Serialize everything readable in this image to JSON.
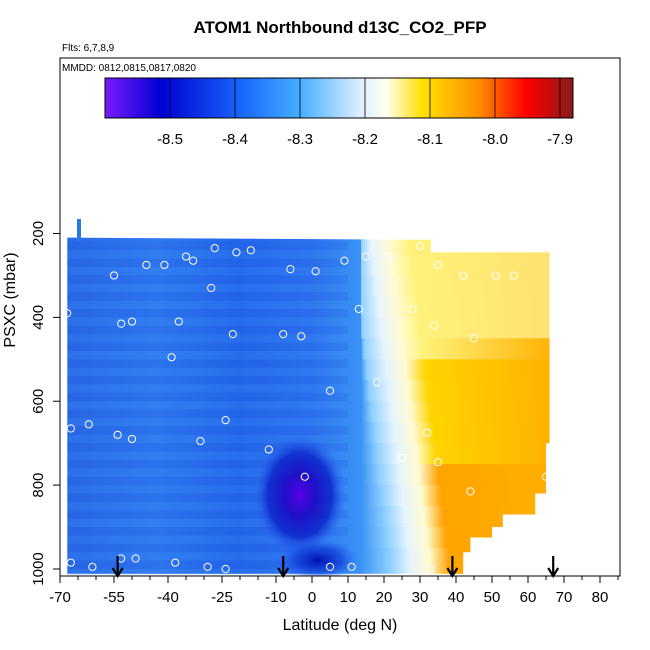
{
  "chart_data": {
    "type": "heatmap",
    "title": "ATOM1 Northbound d13C_CO2_PFP",
    "flights_note": "Flts: 6,7,8,9",
    "dates_note": "MMDD: 0812,0815,0817,0820",
    "xlabel": "Latitude (deg N)",
    "ylabel": "PSXC (mbar)",
    "xlim": [
      -70,
      85
    ],
    "ylim": [
      1000,
      0
    ],
    "x_tick_labels": [
      "-70",
      "-55",
      "-40",
      "-25",
      "-10",
      "0",
      "10",
      "20",
      "30",
      "40",
      "50",
      "60",
      "70",
      "80"
    ],
    "x_tick_values": [
      -70,
      -55,
      -40,
      -25,
      -10,
      0,
      10,
      20,
      30,
      40,
      50,
      60,
      70,
      80
    ],
    "y_tick_labels": [
      "200",
      "400",
      "600",
      "800",
      "1000"
    ],
    "y_tick_values": [
      200,
      400,
      600,
      800,
      1000
    ],
    "colorbar": {
      "min": -8.6,
      "max": -7.88,
      "tick_labels": [
        "-8.5",
        "-8.4",
        "-8.3",
        "-8.2",
        "-8.1",
        "-8.0",
        "-7.9"
      ],
      "tick_values": [
        -8.5,
        -8.4,
        -8.3,
        -8.2,
        -8.1,
        -8.0,
        -7.9
      ],
      "colors": [
        "#6a00ff",
        "#0000c8",
        "#1e64ff",
        "#46b4ff",
        "#c8e6ff",
        "#fffff0",
        "#ffd200",
        "#ff8c00",
        "#ff0000",
        "#8b1a1a"
      ]
    },
    "sample_points": [
      {
        "lat": -68,
        "p": 390
      },
      {
        "lat": -67,
        "p": 665
      },
      {
        "lat": -67,
        "p": 985
      },
      {
        "lat": -62,
        "p": 655
      },
      {
        "lat": -61,
        "p": 995
      },
      {
        "lat": -55,
        "p": 300
      },
      {
        "lat": -54,
        "p": 680
      },
      {
        "lat": -53,
        "p": 415
      },
      {
        "lat": -53,
        "p": 975
      },
      {
        "lat": -50,
        "p": 410
      },
      {
        "lat": -50,
        "p": 690
      },
      {
        "lat": -49,
        "p": 975
      },
      {
        "lat": -46,
        "p": 275
      },
      {
        "lat": -41,
        "p": 275
      },
      {
        "lat": -39,
        "p": 495
      },
      {
        "lat": -38,
        "p": 985
      },
      {
        "lat": -37,
        "p": 410
      },
      {
        "lat": -35,
        "p": 255
      },
      {
        "lat": -33,
        "p": 265
      },
      {
        "lat": -31,
        "p": 695
      },
      {
        "lat": -29,
        "p": 995
      },
      {
        "lat": -28,
        "p": 330
      },
      {
        "lat": -27,
        "p": 235
      },
      {
        "lat": -24,
        "p": 645
      },
      {
        "lat": -24,
        "p": 1000
      },
      {
        "lat": -22,
        "p": 440
      },
      {
        "lat": -21,
        "p": 245
      },
      {
        "lat": -17,
        "p": 240
      },
      {
        "lat": -12,
        "p": 715
      },
      {
        "lat": -8,
        "p": 440
      },
      {
        "lat": -6,
        "p": 285
      },
      {
        "lat": -3,
        "p": 445
      },
      {
        "lat": -2,
        "p": 780
      },
      {
        "lat": 1,
        "p": 290
      },
      {
        "lat": 5,
        "p": 575
      },
      {
        "lat": 5,
        "p": 995
      },
      {
        "lat": 9,
        "p": 265
      },
      {
        "lat": 11,
        "p": 995
      },
      {
        "lat": 13,
        "p": 380
      },
      {
        "lat": 15,
        "p": 255
      },
      {
        "lat": 18,
        "p": 555
      },
      {
        "lat": 21,
        "p": 255
      },
      {
        "lat": 25,
        "p": 735
      },
      {
        "lat": 28,
        "p": 380
      },
      {
        "lat": 30,
        "p": 230
      },
      {
        "lat": 32,
        "p": 675
      },
      {
        "lat": 33,
        "p": 1000
      },
      {
        "lat": 34,
        "p": 420
      },
      {
        "lat": 35,
        "p": 275
      },
      {
        "lat": 35,
        "p": 745
      },
      {
        "lat": 42,
        "p": 300
      },
      {
        "lat": 44,
        "p": 815
      },
      {
        "lat": 45,
        "p": 450
      },
      {
        "lat": 51,
        "p": 300
      },
      {
        "lat": 56,
        "p": 300
      },
      {
        "lat": 65,
        "p": 780
      }
    ],
    "flight_markers_lat": [
      -54,
      -8,
      39,
      67
    ],
    "grid": false,
    "legend": "colorbar-top"
  }
}
